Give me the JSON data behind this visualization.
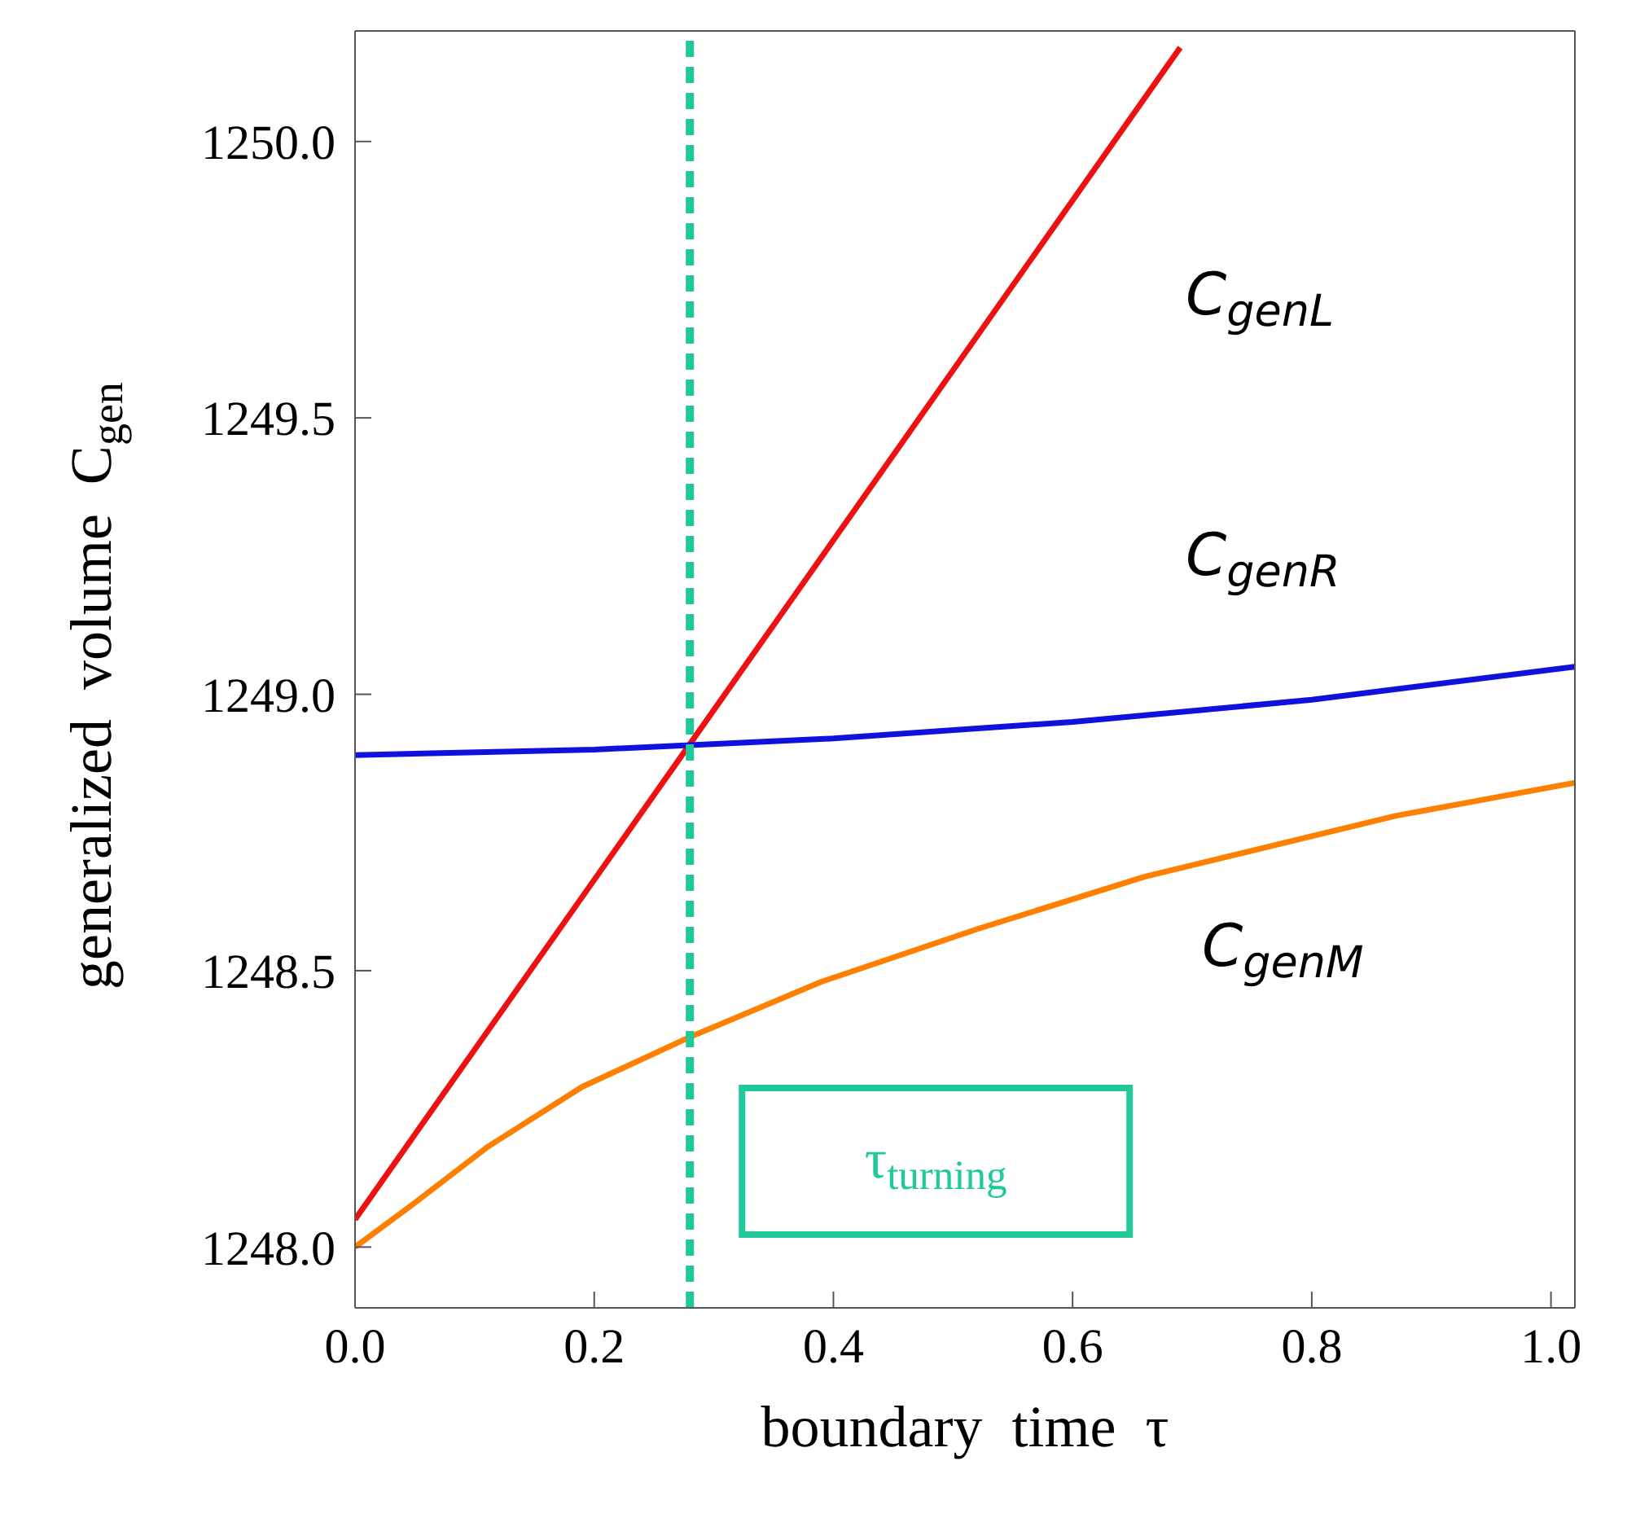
{
  "chart_data": {
    "type": "line",
    "xlabel": "boundary  time  τ",
    "ylabel": "generalized  volume  C$_{gen}$",
    "xlim": [
      0,
      1.02
    ],
    "xticks": [
      {
        "value": 0,
        "label": "0.0"
      },
      0.2,
      0.4,
      0.6,
      0.8,
      {
        "value": 1,
        "label": "1.0"
      }
    ],
    "ylim": [
      1247.89,
      1250.2
    ],
    "yticks": [
      {
        "value": 1248,
        "label": "1248.0"
      },
      1248.5,
      {
        "value": 1249,
        "label": "1249.0"
      },
      1249.5,
      {
        "value": 1250,
        "label": "1250.0"
      }
    ],
    "grid": false,
    "legend": false,
    "marker": "none",
    "line_style": "solid",
    "series": [
      {
        "name": "C$_{genL}$",
        "color": "#ee1111",
        "x": [
          0,
          0.28,
          0.69
        ],
        "values": [
          1248.05,
          1248.91,
          1250.17
        ]
      },
      {
        "name": "C$_{genR}$",
        "color": "#1111dd",
        "x": [
          0,
          0.2,
          0.4,
          0.6,
          0.8,
          1.02
        ],
        "values": [
          1248.89,
          1248.9,
          1248.92,
          1248.95,
          1248.99,
          1249.05
        ]
      },
      {
        "name": "C$_{genM}$",
        "color": "#ff8000",
        "x": [
          0,
          0.05,
          0.11,
          0.19,
          0.28,
          0.39,
          0.52,
          0.66,
          0.87,
          1.02
        ],
        "values": [
          1248.0,
          1248.08,
          1248.18,
          1248.29,
          1248.38,
          1248.48,
          1248.575,
          1248.67,
          1248.78,
          1248.84
        ]
      }
    ],
    "ref_lines": [
      {
        "axis": "x",
        "value": 0.28,
        "label": "τ$_{turning}$",
        "color": "#1fc99a",
        "line_style": "dashed"
      }
    ]
  }
}
